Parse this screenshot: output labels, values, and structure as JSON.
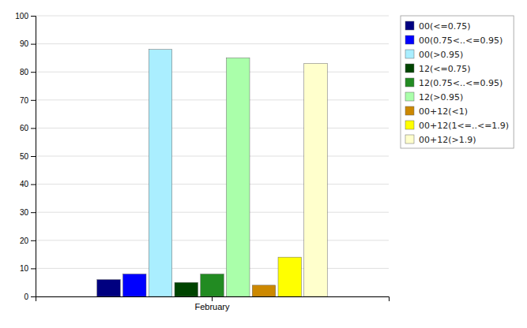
{
  "chart_data": {
    "type": "bar",
    "categories": [
      "February"
    ],
    "series": [
      {
        "name": "00(<=0.75)",
        "color": "#000080",
        "values": [
          6
        ]
      },
      {
        "name": "00(0.75<..<=0.95)",
        "color": "#0000FF",
        "values": [
          8
        ]
      },
      {
        "name": "00(>0.95)",
        "color": "#AAEEFF",
        "values": [
          88
        ]
      },
      {
        "name": "12(<=0.75)",
        "color": "#004400",
        "values": [
          5
        ]
      },
      {
        "name": "12(0.75<..<=0.95)",
        "color": "#228B22",
        "values": [
          8
        ]
      },
      {
        "name": "12(>0.95)",
        "color": "#AAFFAA",
        "values": [
          85
        ]
      },
      {
        "name": "00+12(<1)",
        "color": "#CC8800",
        "values": [
          4
        ]
      },
      {
        "name": "00+12(1<=..<=1.9)",
        "color": "#FFFF00",
        "values": [
          14
        ]
      },
      {
        "name": "00+12(>1.9)",
        "color": "#FFFFCC",
        "values": [
          83
        ]
      }
    ],
    "ylim": [
      0,
      100
    ],
    "yticks": [
      0,
      10,
      20,
      30,
      40,
      50,
      60,
      70,
      80,
      90,
      100
    ],
    "grid": true,
    "legend": "right"
  }
}
